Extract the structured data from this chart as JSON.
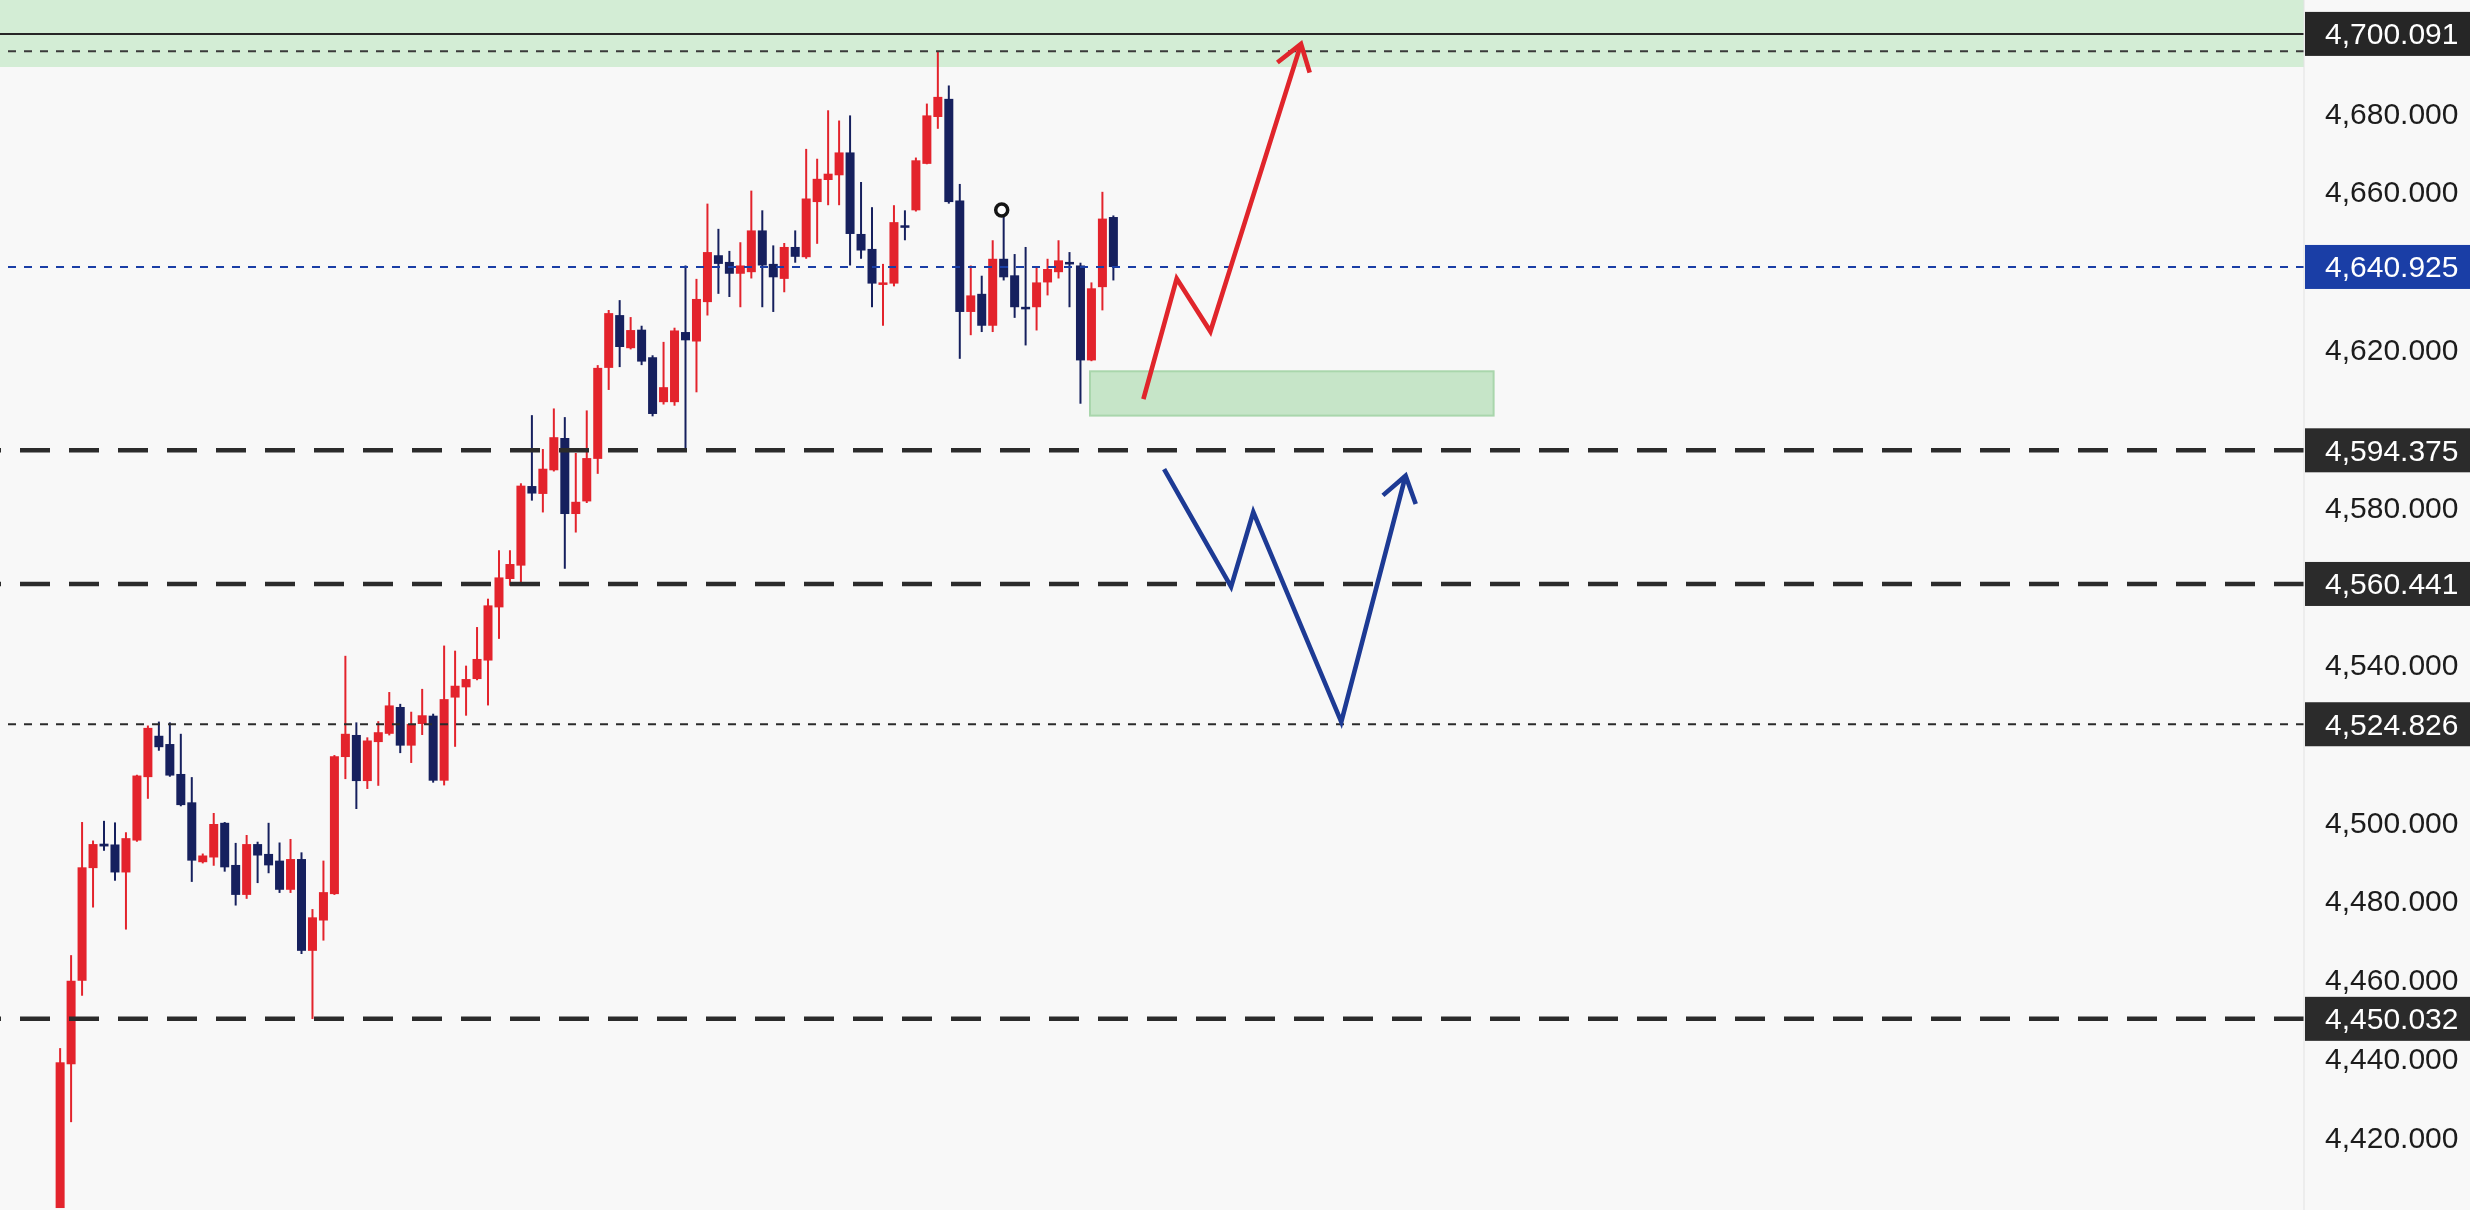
{
  "chart_data": {
    "type": "candlestick",
    "categories": [
      null,
      null,
      null,
      null,
      null,
      null,
      null,
      null,
      null,
      null,
      null,
      null,
      null,
      null,
      null,
      null,
      null,
      null,
      null,
      null,
      null,
      null,
      null,
      null,
      null,
      null,
      null,
      null,
      null,
      null,
      null,
      null,
      null,
      null,
      null,
      null,
      null,
      null,
      null,
      null,
      null,
      null,
      null,
      null,
      null,
      null,
      null,
      null,
      null,
      null,
      null,
      null,
      null,
      null,
      null,
      null,
      null,
      null,
      null,
      null,
      null,
      null,
      null,
      null,
      null,
      null,
      null,
      null,
      null,
      null,
      null,
      null,
      null,
      null,
      null,
      null,
      null,
      null,
      null,
      null,
      null,
      null,
      null,
      null,
      null,
      null,
      null,
      null,
      null,
      null,
      null,
      null,
      null,
      null,
      null,
      null,
      null,
      null,
      null,
      null,
      null,
      null,
      null,
      null,
      null,
      null,
      null,
      null,
      null,
      null,
      null,
      null,
      null,
      null,
      null,
      null,
      null,
      null,
      null,
      null,
      null,
      null,
      null,
      null,
      null,
      null,
      null,
      null,
      null,
      null,
      null,
      null,
      null,
      null,
      null,
      null,
      null,
      null,
      null,
      null,
      null,
      null,
      null,
      null,
      null,
      null,
      null,
      null,
      null,
      null,
      null,
      null,
      null,
      null,
      null,
      null,
      null,
      null,
      null,
      null,
      null,
      null,
      null,
      null,
      null,
      null,
      null,
      null,
      null,
      null,
      null,
      null,
      null,
      null,
      null,
      null,
      null,
      null,
      null,
      null,
      null,
      null,
      null,
      null,
      null,
      null,
      null,
      null,
      null,
      null,
      null,
      null,
      null,
      null,
      null,
      null,
      null,
      null,
      null,
      null,
      null,
      null,
      null,
      null,
      null,
      null,
      null,
      null,
      null,
      null
    ],
    "ohlc": [
      null,
      null,
      null,
      null,
      null,
      [
        4402,
        4442.6,
        4402,
        4439
      ],
      [
        4438.5,
        4466.2,
        4423.8,
        4459.7
      ],
      [
        4459.7,
        4500,
        4455.9,
        4488.5
      ],
      [
        4488.3,
        4495.3,
        4478.3,
        4494.4
      ],
      [
        4494.5,
        4500.3,
        4492.7,
        4493.8
      ],
      [
        4494.3,
        4499.9,
        4485.1,
        4487.2
      ],
      [
        4487.2,
        4497.4,
        4472.7,
        4495.9
      ],
      [
        4495.3,
        4512,
        4495,
        4511.8
      ],
      [
        4511.4,
        4524.5,
        4505.9,
        4523.9
      ],
      [
        4521.9,
        4525.5,
        4518.1,
        4519
      ],
      [
        4519.8,
        4525.3,
        4511.5,
        4511.8
      ],
      [
        4512.2,
        4522.4,
        4504,
        4504.3
      ],
      [
        4505,
        4511.4,
        4484.8,
        4490.2
      ],
      [
        4489.8,
        4492,
        4489.5,
        4491.5
      ],
      [
        4491,
        4502.3,
        4488.9,
        4499.5
      ],
      [
        4499.8,
        4500,
        4487.4,
        4488.5
      ],
      [
        4489.1,
        4494.7,
        4478.8,
        4481.5
      ],
      [
        4481.5,
        4496.7,
        4480.5,
        4494.4
      ],
      [
        4494.4,
        4495,
        4484.5,
        4491.5
      ],
      [
        4491.9,
        4499.8,
        4487,
        4489
      ],
      [
        4490.2,
        4494.8,
        4482,
        4482.8
      ],
      [
        4482.8,
        4495.7,
        4482,
        4490.6
      ],
      [
        4490.6,
        4492.3,
        4466.5,
        4467.3
      ],
      [
        4467.3,
        4477.9,
        4450,
        4475.8
      ],
      [
        4475,
        4490.2,
        4469.9,
        4482.2
      ],
      [
        4481.7,
        4517,
        4481.5,
        4516.7
      ],
      [
        4516.5,
        4542.2,
        4510.9,
        4522.4
      ],
      [
        4522.1,
        4525.3,
        4503.3,
        4510.4
      ],
      [
        4510.4,
        4521.5,
        4508.4,
        4520.7
      ],
      [
        4520.3,
        4525.6,
        4509.2,
        4522.8
      ],
      [
        4522.4,
        4533,
        4522,
        4529.6
      ],
      [
        4529.2,
        4530,
        4517.5,
        4519.4
      ],
      [
        4519.4,
        4528,
        4515,
        4524.9
      ],
      [
        4524.9,
        4533.8,
        4522.1,
        4527.1
      ],
      [
        4527,
        4527.5,
        4510,
        4510.5
      ],
      [
        4510.5,
        4544.8,
        4509.3,
        4531.2
      ],
      [
        4531.6,
        4543.5,
        4519.1,
        4534.6
      ],
      [
        4534.2,
        4539.7,
        4527,
        4536.3
      ],
      [
        4536.3,
        4549.5,
        4536,
        4541.4
      ],
      [
        4541,
        4556.7,
        4529.6,
        4555
      ],
      [
        4554.5,
        4569,
        4546.5,
        4562.1
      ],
      [
        4561.7,
        4569,
        4560,
        4565.5
      ],
      [
        4565.1,
        4586,
        4560.4,
        4585.4
      ],
      [
        4585.3,
        4603.3,
        4581.6,
        4583.4
      ],
      [
        4583.3,
        4594.7,
        4578.6,
        4589.7
      ],
      [
        4589.3,
        4605,
        4589,
        4597.7
      ],
      [
        4597.5,
        4602.8,
        4564.3,
        4578.2
      ],
      [
        4578.2,
        4593.7,
        4573.5,
        4581.3
      ],
      [
        4581.4,
        4604.5,
        4581,
        4592.4
      ],
      [
        4592.2,
        4616,
        4588.4,
        4615.3
      ],
      [
        4615.3,
        4630,
        4609.7,
        4629.2
      ],
      [
        4628.7,
        4632.5,
        4615.5,
        4620.6
      ],
      [
        4620.3,
        4628.2,
        4620,
        4624.9
      ],
      [
        4625,
        4626,
        4616,
        4616.9
      ],
      [
        4618,
        4618.5,
        4603,
        4603.6
      ],
      [
        4606.6,
        4621.9,
        4606,
        4610.4
      ],
      [
        4606.6,
        4625.5,
        4605.7,
        4624.8
      ],
      [
        4624.4,
        4641.3,
        4594.4,
        4622.3
      ],
      [
        4622,
        4637.9,
        4609.1,
        4632.8
      ],
      [
        4632,
        4657,
        4628.6,
        4644.7
      ],
      [
        4643.9,
        4650.6,
        4634.1,
        4641.7
      ],
      [
        4642.2,
        4645,
        4633.3,
        4639.2
      ],
      [
        4639.2,
        4647.2,
        4630.7,
        4641.3
      ],
      [
        4639.6,
        4660.3,
        4638,
        4650.2
      ],
      [
        4650.2,
        4655.3,
        4630.7,
        4641.3
      ],
      [
        4641.7,
        4646.4,
        4629.5,
        4638.3
      ],
      [
        4637.9,
        4647,
        4634.5,
        4646
      ],
      [
        4646,
        4650.2,
        4642,
        4643.5
      ],
      [
        4643.4,
        4670.9,
        4643,
        4658.3
      ],
      [
        4657.4,
        4668.4,
        4646.8,
        4663.3
      ],
      [
        4663,
        4680.7,
        4656.6,
        4664.6
      ],
      [
        4664.2,
        4678.1,
        4656.6,
        4670
      ],
      [
        4670,
        4679.4,
        4641.3,
        4649.3
      ],
      [
        4649.3,
        4662.5,
        4643,
        4645.1
      ],
      [
        4645.5,
        4656.1,
        4630.7,
        4636.7
      ],
      [
        4636.7,
        4641.7,
        4626,
        4637
      ],
      [
        4636.7,
        4656.6,
        4636,
        4652.3
      ],
      [
        4651.5,
        4655.3,
        4647.7,
        4651.4
      ],
      [
        4655.3,
        4668.7,
        4655,
        4668
      ],
      [
        4667.1,
        4682.4,
        4667,
        4679.4
      ],
      [
        4679,
        4695.8,
        4676,
        4684.1
      ],
      [
        4683.6,
        4687,
        4657,
        4657.4
      ],
      [
        4657.8,
        4662,
        4617.6,
        4629.5
      ],
      [
        4629.5,
        4641.3,
        4623.6,
        4633.7
      ],
      [
        4634.1,
        4638.7,
        4624.4,
        4626
      ],
      [
        4626,
        4647.7,
        4624.4,
        4643
      ],
      [
        4643,
        4654,
        4637.5,
        4638.3
      ],
      [
        4638.8,
        4644.2,
        4628,
        4630.7
      ],
      [
        4630.8,
        4646,
        4621,
        4630.6
      ],
      [
        4630.7,
        4641,
        4624.8,
        4637
      ],
      [
        4637,
        4643,
        4633.7,
        4640.4
      ],
      [
        4639.6,
        4647.7,
        4638,
        4642.6
      ],
      [
        4642.2,
        4644.7,
        4630.7,
        4642.1
      ],
      [
        4641.3,
        4642,
        4606.2,
        4617.2
      ],
      [
        4617.2,
        4637,
        4617,
        4635.5
      ],
      [
        4635.8,
        4660,
        4629.9,
        4653.2
      ],
      [
        4653.6,
        4654,
        4637.5,
        4640.9
      ],
      null,
      null,
      null,
      null,
      null,
      null,
      null,
      null,
      null,
      null,
      null,
      null,
      null,
      null,
      null,
      null,
      null,
      null,
      null,
      null,
      null,
      null,
      null,
      null,
      null,
      null,
      null,
      null,
      null,
      null,
      null,
      null,
      null,
      null,
      null,
      null,
      null,
      null,
      null,
      null,
      null,
      null,
      null,
      null,
      null,
      null,
      null,
      null,
      null,
      null,
      null,
      null,
      null,
      null,
      null,
      null,
      null,
      null,
      null,
      null,
      null,
      null,
      null,
      null,
      null,
      null,
      null,
      null,
      null,
      null,
      null,
      null,
      null,
      null,
      null,
      null,
      null,
      null,
      null,
      null,
      null,
      null,
      null,
      null,
      null,
      null,
      null,
      null,
      null,
      null,
      null,
      null,
      null,
      null,
      null,
      null,
      null,
      null,
      null,
      null,
      null,
      null,
      null,
      null,
      null,
      null,
      null,
      null
    ],
    "colors": [
      null,
      null,
      null,
      null,
      null,
      "#e3232c",
      "#e3232c",
      "#e3232c",
      "#e3232c",
      "#16205e",
      "#16205e",
      "#e3232c",
      "#e3232c",
      "#e3232c",
      "#16205e",
      "#16205e",
      "#16205e",
      "#16205e",
      "#e3232c",
      "#e3232c",
      "#16205e",
      "#16205e",
      "#e3232c",
      "#16205e",
      "#16205e",
      "#16205e",
      "#e3232c",
      "#16205e",
      "#e3232c",
      "#e3232c",
      "#e3232c",
      "#e3232c",
      "#16205e",
      "#e3232c",
      "#e3232c",
      "#e3232c",
      "#16205e",
      "#e3232c",
      "#e3232c",
      "#16205e",
      "#e3232c",
      "#e3232c",
      "#e3232c",
      "#e3232c",
      "#e3232c",
      "#e3232c",
      "#e3232c",
      "#e3232c",
      "#16205e",
      "#e3232c",
      "#e3232c",
      "#16205e",
      "#e3232c",
      "#e3232c",
      "#e3232c",
      "#e3232c",
      "#16205e",
      "#e3232c",
      "#16205e",
      "#16205e",
      "#e3232c",
      "#e3232c",
      "#16205e",
      "#e3232c",
      "#e3232c",
      "#16205e",
      "#16205e",
      "#e3232c",
      "#e3232c",
      "#16205e",
      "#16205e",
      "#e3232c",
      "#16205e",
      "#e3232c",
      "#e3232c",
      "#e3232c",
      "#e3232c",
      "#16205e",
      "#16205e",
      "#16205e",
      "#e3232c",
      "#e3232c",
      "#16205e",
      "#e3232c",
      "#e3232c",
      "#e3232c",
      "#16205e",
      "#16205e",
      "#e3232c",
      "#16205e",
      "#e3232c",
      "#16205e",
      "#16205e",
      "#16205e",
      "#e3232c",
      "#e3232c",
      "#e3232c",
      "#16205e",
      "#16205e",
      "#e3232c",
      "#e3232c",
      "#16205e",
      null,
      null,
      null,
      null,
      null,
      null,
      null,
      null,
      null,
      null,
      null,
      null,
      null,
      null,
      null,
      null,
      null,
      null,
      null,
      null,
      null,
      null,
      null,
      null,
      null,
      null,
      null,
      null,
      null,
      null,
      null,
      null,
      null,
      null,
      null,
      null,
      null,
      null,
      null,
      null,
      null,
      null,
      null,
      null,
      null,
      null,
      null,
      null,
      null,
      null,
      null,
      null,
      null,
      null,
      null,
      null,
      null,
      null,
      null,
      null,
      null,
      null,
      null,
      null,
      null,
      null,
      null,
      null,
      null,
      null,
      null,
      null,
      null,
      null,
      null,
      null,
      null,
      null,
      null,
      null,
      null,
      null,
      null,
      null,
      null,
      null,
      null,
      null,
      null,
      null,
      null,
      null,
      null,
      null,
      null,
      null,
      null,
      null,
      null,
      null,
      null,
      null,
      null,
      null,
      null,
      null,
      null,
      null
    ],
    "ylim": [
      4401.5,
      4708.7
    ],
    "yticks": [
      {
        "value": 4420,
        "label": "4,420.000"
      },
      {
        "value": 4440,
        "label": "4,440.000"
      },
      {
        "value": 4460,
        "label": "4,460.000"
      },
      {
        "value": 4480,
        "label": "4,480.000"
      },
      {
        "value": 4500,
        "label": "4,500.000"
      },
      {
        "value": 4540,
        "label": "4,540.000"
      },
      {
        "value": 4580,
        "label": "4,580.000"
      },
      {
        "value": 4620,
        "label": "4,620.000"
      },
      {
        "value": 4660,
        "label": "4,660.000"
      },
      {
        "value": 4680,
        "label": "4,680.000"
      }
    ],
    "tick_labels": "y",
    "ref_lines": [
      {
        "axis": "y",
        "value": 4700.091,
        "label": "4,700.091",
        "color": "#262626",
        "line_style": "solid"
      },
      {
        "axis": "y",
        "value": 4695.7,
        "color": "#3a3a3a",
        "line_style": "dotted"
      },
      {
        "axis": "y",
        "value": 4640.925,
        "label": "4,640.925",
        "color": "#1a3ea6",
        "line_style": "dotted"
      },
      {
        "axis": "y",
        "value": 4594.375,
        "label": "4,594.375",
        "color": "#2b2b2b",
        "line_style": "dashed"
      },
      {
        "axis": "y",
        "value": 4560.441,
        "label": "4,560.441",
        "color": "#2b2b2b",
        "line_style": "dashed"
      },
      {
        "axis": "y",
        "value": 4524.826,
        "label": "4,524.826",
        "color": "#2b2b2b",
        "line_style": "dotted"
      },
      {
        "axis": "y",
        "value": 4450.032,
        "label": "4,450.032",
        "color": "#2b2b2b",
        "line_style": "dashed"
      }
    ],
    "bands": [
      {
        "axis": "y",
        "from": 4691.7,
        "to": 4708.7,
        "color": "#d3edd5"
      }
    ]
  }
}
